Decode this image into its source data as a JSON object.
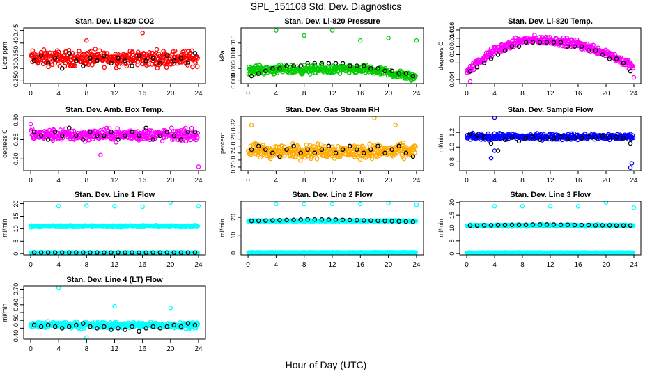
{
  "page": {
    "title": "SPL_151108  Std. Dev. Diagnostics",
    "xlabel": "Hour of Day (UTC)"
  },
  "chart_data": [
    {
      "type": "scatter",
      "title": "Stan. Dev. Li-820 CO2",
      "ylabel": "Licor ppm",
      "xlim": [
        -1,
        25
      ],
      "ylim": [
        0.24,
        0.46
      ],
      "xticks": [
        0,
        4,
        8,
        12,
        16,
        20,
        24
      ],
      "yticks": [
        0.25,
        0.3,
        0.35,
        0.4,
        0.45
      ],
      "ytick_labels": [
        "0.25",
        "0.30",
        "0.35",
        "0.40",
        "0.45"
      ],
      "color": "#ff0000",
      "series": [
        {
          "color": "#ff0000",
          "band": {
            "mid": 0.34,
            "spread": 0.045
          },
          "x": [
            8,
            16
          ],
          "y": [
            0.41,
            0.44
          ]
        },
        {
          "color": "#000000",
          "x": [
            0.5,
            1.5,
            2.5,
            3.5,
            4.5,
            5.5,
            6.5,
            7.5,
            8.5,
            9.5,
            10.5,
            11.5,
            12.5,
            13.5,
            14.5,
            15.5,
            16.5,
            17.5,
            18.5,
            19.5,
            20.5,
            21.5,
            22.5,
            23.5
          ],
          "y": [
            0.33,
            0.35,
            0.32,
            0.34,
            0.3,
            0.36,
            0.33,
            0.31,
            0.34,
            0.33,
            0.35,
            0.32,
            0.34,
            0.33,
            0.31,
            0.35,
            0.33,
            0.34,
            0.32,
            0.35,
            0.33,
            0.34,
            0.32,
            0.36
          ]
        }
      ]
    },
    {
      "type": "scatter",
      "title": "Stan. Dev. Li-820 Pressure",
      "ylabel": "kPa",
      "xlim": [
        -1,
        25
      ],
      "ylim": [
        -0.001,
        0.021
      ],
      "xticks": [
        0,
        4,
        8,
        12,
        16,
        20,
        24
      ],
      "yticks": [
        0.0,
        0.005,
        0.01,
        0.015
      ],
      "ytick_labels": [
        "0.000",
        "0.005",
        "0.010",
        "0.015"
      ],
      "color": "#00cc00",
      "series": [
        {
          "color": "#00cc00",
          "band": {
            "mid": 0.0045,
            "spread": 0.0025
          },
          "x": [
            4,
            8,
            12,
            16,
            20,
            24
          ],
          "y": [
            0.02,
            0.018,
            0.02,
            0.016,
            0.017,
            0.016
          ]
        },
        {
          "color": "#000000",
          "x": [
            0.5,
            1.5,
            2.5,
            3.5,
            4.5,
            5.5,
            6.5,
            7.5,
            8.5,
            9.5,
            10.5,
            11.5,
            12.5,
            13.5,
            14.5,
            15.5,
            16.5,
            17.5,
            18.5,
            19.5,
            20.5,
            21.5,
            22.5,
            23.5
          ],
          "y": [
            0.002,
            0.003,
            0.004,
            0.005,
            0.005,
            0.006,
            0.006,
            0.006,
            0.007,
            0.007,
            0.007,
            0.007,
            0.007,
            0.007,
            0.006,
            0.006,
            0.006,
            0.005,
            0.005,
            0.004,
            0.004,
            0.003,
            0.003,
            0.002
          ]
        }
      ]
    },
    {
      "type": "scatter",
      "title": "Stan. Dev. Li-820 Temp.",
      "ylabel": "degrees C",
      "xlim": [
        -1,
        25
      ],
      "ylim": [
        0.003,
        0.0165
      ],
      "xticks": [
        0,
        4,
        8,
        12,
        16,
        20,
        24
      ],
      "yticks": [
        0.004,
        0.008,
        0.01,
        0.012,
        0.014,
        0.016
      ],
      "ytick_labels": [
        "0.004",
        "",
        "0.010",
        "",
        "0.014",
        "0.016"
      ],
      "color": "#ff00ff",
      "series": [
        {
          "color": "#ff00ff",
          "curve": [
            [
              0,
              0.006
            ],
            [
              4,
              0.011
            ],
            [
              8,
              0.0135
            ],
            [
              12,
              0.0135
            ],
            [
              16,
              0.0125
            ],
            [
              20,
              0.0105
            ],
            [
              24,
              0.007
            ]
          ],
          "spread": 0.0015,
          "x": [
            0.5,
            24
          ],
          "y": [
            0.0035,
            0.0045
          ]
        },
        {
          "color": "#000000",
          "x": [
            0.5,
            1.5,
            2.5,
            3.5,
            4.5,
            5.5,
            6.5,
            7.5,
            8.5,
            9.5,
            10.5,
            11.5,
            12.5,
            13.5,
            14.5,
            15.5,
            16.5,
            17.5,
            18.5,
            19.5,
            20.5,
            21.5,
            22.5,
            23.5
          ],
          "y": [
            0.006,
            0.007,
            0.008,
            0.009,
            0.01,
            0.011,
            0.012,
            0.012,
            0.013,
            0.013,
            0.013,
            0.013,
            0.013,
            0.013,
            0.012,
            0.012,
            0.012,
            0.011,
            0.011,
            0.01,
            0.009,
            0.009,
            0.008,
            0.006
          ]
        }
      ]
    },
    {
      "type": "scatter",
      "title": "Stan. Dev. Amb. Box Temp.",
      "ylabel": "degrees C",
      "xlim": [
        -1,
        25
      ],
      "ylim": [
        0.17,
        0.31
      ],
      "xticks": [
        0,
        4,
        8,
        12,
        16,
        20,
        24
      ],
      "yticks": [
        0.2,
        0.25,
        0.3
      ],
      "ytick_labels": [
        "0.20",
        "0.25",
        "0.30"
      ],
      "color": "#ff00ff",
      "series": [
        {
          "color": "#ff00ff",
          "band": {
            "mid": 0.262,
            "spread": 0.022
          },
          "x": [
            0,
            24,
            10
          ],
          "y": [
            0.29,
            0.18,
            0.21
          ]
        },
        {
          "color": "#000000",
          "x": [
            0.5,
            1.5,
            2.5,
            3.5,
            4.5,
            5.5,
            6.5,
            7.5,
            8.5,
            9.5,
            10.5,
            11.5,
            12.5,
            13.5,
            14.5,
            15.5,
            16.5,
            17.5,
            18.5,
            19.5,
            20.5,
            21.5,
            22.5,
            23.5
          ],
          "y": [
            0.27,
            0.26,
            0.25,
            0.27,
            0.26,
            0.28,
            0.26,
            0.25,
            0.27,
            0.26,
            0.26,
            0.27,
            0.25,
            0.26,
            0.27,
            0.26,
            0.28,
            0.25,
            0.26,
            0.27,
            0.26,
            0.25,
            0.27,
            0.27
          ]
        }
      ]
    },
    {
      "type": "scatter",
      "title": "Stan. Dev. Gas Stream RH",
      "ylabel": "percent",
      "xlim": [
        -1,
        25
      ],
      "ylim": [
        0.19,
        0.345
      ],
      "xticks": [
        0,
        4,
        8,
        12,
        16,
        20,
        24
      ],
      "yticks": [
        0.2,
        0.22,
        0.24,
        0.26,
        0.28,
        0.3,
        0.32
      ],
      "ytick_labels": [
        "0.20",
        "",
        "0.24",
        "",
        "0.28",
        "",
        "0.32"
      ],
      "color": "#ffaa00",
      "series": [
        {
          "color": "#ffaa00",
          "band": {
            "mid": 0.245,
            "spread": 0.03
          },
          "x": [
            0.5,
            18,
            21
          ],
          "y": [
            0.32,
            0.34,
            0.32
          ]
        },
        {
          "color": "#000000",
          "x": [
            0.5,
            1.5,
            2.5,
            3.5,
            4.5,
            5.5,
            6.5,
            7.5,
            8.5,
            9.5,
            10.5,
            11.5,
            12.5,
            13.5,
            14.5,
            15.5,
            16.5,
            17.5,
            18.5,
            19.5,
            20.5,
            21.5,
            22.5,
            23.5
          ],
          "y": [
            0.25,
            0.26,
            0.25,
            0.24,
            0.23,
            0.25,
            0.26,
            0.24,
            0.25,
            0.24,
            0.25,
            0.26,
            0.24,
            0.25,
            0.26,
            0.25,
            0.24,
            0.25,
            0.26,
            0.24,
            0.25,
            0.26,
            0.24,
            0.23
          ]
        }
      ]
    },
    {
      "type": "scatter",
      "title": "Stan. Dev. Sample Flow",
      "ylabel": "ml/min",
      "xlim": [
        -1,
        25
      ],
      "ylim": [
        0.68,
        1.42
      ],
      "xticks": [
        0,
        4,
        8,
        12,
        16,
        20,
        24
      ],
      "yticks": [
        0.8,
        1.0,
        1.2
      ],
      "ytick_labels": [
        "0.8",
        "1.0",
        "1.2"
      ],
      "color": "#0000ff",
      "series": [
        {
          "color": "#0000ff",
          "band": {
            "mid": 1.14,
            "spread": 0.06
          },
          "x": [
            3.5,
            4,
            4,
            23.5,
            23.7
          ],
          "y": [
            0.85,
            1.4,
            0.95,
            0.72,
            0.78
          ]
        },
        {
          "color": "#000000",
          "x": [
            0.5,
            1.5,
            2.5,
            3.5,
            4.5,
            5.5,
            6.5,
            7.5,
            8.5,
            9.5,
            10.5,
            11.5,
            12.5,
            13.5,
            14.5,
            15.5,
            16.5,
            17.5,
            18.5,
            19.5,
            20.5,
            21.5,
            22.5,
            23.5
          ],
          "y": [
            1.18,
            1.16,
            1.14,
            1.05,
            0.95,
            1.1,
            1.13,
            1.08,
            1.12,
            1.14,
            1.1,
            1.13,
            1.12,
            1.14,
            1.11,
            1.13,
            1.12,
            1.14,
            1.13,
            1.15,
            1.13,
            1.14,
            1.12,
            1.05
          ]
        }
      ]
    },
    {
      "type": "scatter",
      "title": "Stan. Dev. Line 1 Flow",
      "ylabel": "ml/min",
      "xlim": [
        -1,
        25
      ],
      "ylim": [
        -0.5,
        21
      ],
      "xticks": [
        0,
        4,
        8,
        12,
        16,
        20,
        24
      ],
      "yticks": [
        0,
        5,
        10,
        15,
        20
      ],
      "ytick_labels": [
        "0",
        "5",
        "10",
        "15",
        "20"
      ],
      "color": "#00ffff",
      "series": [
        {
          "color": "#00ffff",
          "band": {
            "mid": 11.0,
            "spread": 0.5
          },
          "dense": true,
          "x": [
            4,
            8,
            12,
            16,
            20,
            24
          ],
          "y": [
            19.0,
            19.2,
            19.0,
            18.8,
            20.5,
            19.0
          ]
        },
        {
          "color": "#00ffff",
          "band": {
            "mid": 0.3,
            "spread": 0.2
          },
          "dense": true,
          "x": [],
          "y": []
        },
        {
          "color": "#000000",
          "x": [
            0.5,
            1.5,
            2.5,
            3.5,
            4.5,
            5.5,
            6.5,
            7.5,
            8.5,
            9.5,
            10.5,
            11.5,
            12.5,
            13.5,
            14.5,
            15.5,
            16.5,
            17.5,
            18.5,
            19.5,
            20.5,
            21.5,
            22.5,
            23.5
          ],
          "y": [
            0.4,
            0.4,
            0.4,
            0.4,
            0.4,
            0.4,
            0.4,
            0.4,
            0.4,
            0.4,
            0.4,
            0.4,
            0.4,
            0.4,
            0.4,
            0.4,
            0.4,
            0.4,
            0.4,
            0.4,
            0.4,
            0.4,
            0.4,
            0.4
          ]
        }
      ]
    },
    {
      "type": "scatter",
      "title": "Stan. Dev. Line 2 Flow",
      "ylabel": "ml/min",
      "xlim": [
        -1,
        25
      ],
      "ylim": [
        -1,
        29
      ],
      "xticks": [
        0,
        4,
        8,
        12,
        16,
        20,
        24
      ],
      "yticks": [
        0,
        10,
        20
      ],
      "ytick_labels": [
        "0",
        "10",
        "20"
      ],
      "color": "#00ffff",
      "series": [
        {
          "color": "#00ffff",
          "band": {
            "mid": 18.0,
            "spread": 0.4
          },
          "dense": true,
          "x": [
            4,
            8,
            12,
            16,
            20,
            24
          ],
          "y": [
            27.5,
            27.5,
            27.5,
            27.5,
            28.0,
            27.0
          ]
        },
        {
          "color": "#00ffff",
          "band": {
            "mid": 0.3,
            "spread": 0.2
          },
          "dense": true,
          "x": [],
          "y": []
        },
        {
          "color": "#000000",
          "x": [
            0.5,
            1.5,
            2.5,
            3.5,
            4.5,
            5.5,
            6.5,
            7.5,
            8.5,
            9.5,
            10.5,
            11.5,
            12.5,
            13.5,
            14.5,
            15.5,
            16.5,
            17.5,
            18.5,
            19.5,
            20.5,
            21.5,
            22.5,
            23.5
          ],
          "y": [
            18.0,
            18.1,
            18.2,
            18.3,
            18.4,
            18.5,
            18.6,
            18.7,
            18.8,
            18.8,
            18.8,
            18.7,
            18.7,
            18.6,
            18.5,
            18.4,
            18.3,
            18.2,
            18.1,
            18.0,
            17.9,
            17.8,
            17.7,
            17.6
          ]
        }
      ]
    },
    {
      "type": "scatter",
      "title": "Stan. Dev. Line 3 Flow",
      "ylabel": "ml/min",
      "xlim": [
        -1,
        25
      ],
      "ylim": [
        -0.5,
        20.5
      ],
      "xticks": [
        0,
        4,
        8,
        12,
        16,
        20,
        24
      ],
      "yticks": [
        0,
        5,
        10,
        15,
        20
      ],
      "ytick_labels": [
        "0",
        "5",
        "10",
        "15",
        "20"
      ],
      "color": "#00ffff",
      "series": [
        {
          "color": "#00ffff",
          "band": {
            "mid": 11.0,
            "spread": 0.5
          },
          "dense": true,
          "x": [
            4,
            8,
            12,
            16,
            20,
            24
          ],
          "y": [
            18.5,
            18.5,
            18.5,
            18.5,
            20.0,
            18.0
          ]
        },
        {
          "color": "#00ffff",
          "band": {
            "mid": 0.3,
            "spread": 0.2
          },
          "dense": true,
          "x": [],
          "y": []
        },
        {
          "color": "#000000",
          "x": [
            0.5,
            1.5,
            2.5,
            3.5,
            4.5,
            5.5,
            6.5,
            7.5,
            8.5,
            9.5,
            10.5,
            11.5,
            12.5,
            13.5,
            14.5,
            15.5,
            16.5,
            17.5,
            18.5,
            19.5,
            20.5,
            21.5,
            22.5,
            23.5
          ],
          "y": [
            11.0,
            11.0,
            11.1,
            11.1,
            11.2,
            11.2,
            11.3,
            11.3,
            11.3,
            11.4,
            11.4,
            11.4,
            11.4,
            11.3,
            11.3,
            11.2,
            11.2,
            11.2,
            11.1,
            11.1,
            11.1,
            11.0,
            11.0,
            11.0
          ]
        }
      ]
    },
    {
      "type": "scatter",
      "title": "Stan. Dev. Line 4 (LT) Flow",
      "ylabel": "ml/min",
      "xlim": [
        -1,
        25
      ],
      "ylim": [
        0.38,
        0.72
      ],
      "xticks": [
        0,
        4,
        8,
        12,
        16,
        20,
        24
      ],
      "yticks": [
        0.4,
        0.45,
        0.5,
        0.55,
        0.6,
        0.65,
        0.7
      ],
      "ytick_labels": [
        "0.40",
        "",
        "0.50",
        "",
        "0.60",
        "",
        "0.70"
      ],
      "color": "#00ffff",
      "series": [
        {
          "color": "#00ffff",
          "band": {
            "mid": 0.47,
            "spread": 0.03
          },
          "x": [
            4,
            12,
            20,
            8
          ],
          "y": [
            0.71,
            0.59,
            0.58,
            0.39
          ]
        },
        {
          "color": "#000000",
          "x": [
            0.5,
            1.5,
            2.5,
            3.5,
            4.5,
            5.5,
            6.5,
            7.5,
            8.5,
            9.5,
            10.5,
            11.5,
            12.5,
            13.5,
            14.5,
            15.5,
            16.5,
            17.5,
            18.5,
            19.5,
            20.5,
            21.5,
            22.5,
            23.5
          ],
          "y": [
            0.47,
            0.46,
            0.47,
            0.46,
            0.45,
            0.46,
            0.47,
            0.48,
            0.46,
            0.45,
            0.46,
            0.44,
            0.45,
            0.44,
            0.46,
            0.43,
            0.45,
            0.46,
            0.45,
            0.46,
            0.47,
            0.46,
            0.48,
            0.47
          ]
        }
      ]
    }
  ]
}
